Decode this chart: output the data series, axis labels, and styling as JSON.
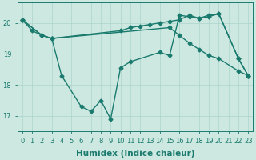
{
  "xlabel": "Humidex (Indice chaleur)",
  "background_color": "#cce8e0",
  "line_color": "#1a7a6e",
  "grid_color": "#aad4cc",
  "xlim": [
    -0.5,
    23.5
  ],
  "ylim": [
    16.5,
    20.65
  ],
  "yticks": [
    17,
    18,
    19,
    20
  ],
  "xticks": [
    0,
    1,
    2,
    3,
    4,
    5,
    6,
    7,
    8,
    9,
    10,
    11,
    12,
    13,
    14,
    15,
    16,
    17,
    18,
    19,
    20,
    21,
    22,
    23
  ],
  "marker": "D",
  "markersize": 2.5,
  "linewidth": 1.0,
  "xlabel_fontsize": 7.5,
  "tick_fontsize": 6.0,
  "series_wiggly_x": [
    0,
    2,
    3,
    4,
    6,
    7,
    8,
    9,
    10,
    11,
    14,
    15,
    16,
    17,
    18,
    19,
    20,
    22,
    23
  ],
  "series_wiggly_y": [
    20.1,
    19.6,
    19.5,
    18.3,
    17.3,
    17.15,
    17.5,
    16.9,
    18.55,
    18.75,
    19.05,
    18.95,
    20.25,
    20.2,
    20.15,
    20.25,
    20.3,
    18.85,
    18.3
  ],
  "series_diagonal_x": [
    0,
    2,
    3,
    15,
    16,
    17,
    18,
    19,
    20,
    22,
    23
  ],
  "series_diagonal_y": [
    20.1,
    19.6,
    19.5,
    19.85,
    19.6,
    19.35,
    19.15,
    18.95,
    18.85,
    18.45,
    18.3
  ],
  "series_upper_x": [
    0,
    1,
    2,
    3,
    10,
    11,
    12,
    13,
    14,
    15,
    16,
    17,
    18,
    19,
    20,
    22,
    23
  ],
  "series_upper_y": [
    20.1,
    19.75,
    19.6,
    19.5,
    19.75,
    19.85,
    19.9,
    19.95,
    20.0,
    20.05,
    20.1,
    20.25,
    20.15,
    20.2,
    20.3,
    18.85,
    18.3
  ]
}
